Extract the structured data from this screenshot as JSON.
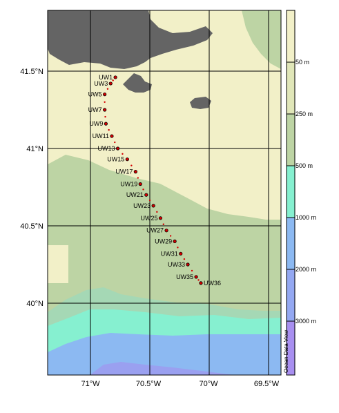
{
  "map": {
    "lon_labels": [
      "71°W",
      "70.5°W",
      "70°W",
      "69.5°W"
    ],
    "lat_labels": [
      "41.5°N",
      "41°N",
      "40.5°N",
      "40°N"
    ],
    "colors": {
      "shelf_0_50": "#f2f0c8",
      "band_50_250": "#bdd4a4",
      "band_250_500": "#a5d8b5",
      "band_500_1000": "#86f0d0",
      "band_1000_2000": "#8cb9f2",
      "band_2000_3000": "#9aa0f0",
      "band_3000_plus": "#a88ff0",
      "land": "#646464",
      "grid": "#000000",
      "station_line": "#d40000"
    }
  },
  "colorbar": {
    "labels": [
      "50 m",
      "250 m",
      "500 m",
      "1000 m",
      "2000 m",
      "3000 m"
    ],
    "watermark": "Ocean Data View"
  },
  "stations": [
    {
      "name": "UW1",
      "lon": -70.79,
      "lat": 41.46
    },
    {
      "name": "UW3",
      "lon": -70.83,
      "lat": 41.42
    },
    {
      "name": "UW5",
      "lon": -70.88,
      "lat": 41.35
    },
    {
      "name": "UW7",
      "lon": -70.88,
      "lat": 41.25
    },
    {
      "name": "UW9",
      "lon": -70.87,
      "lat": 41.16
    },
    {
      "name": "UW11",
      "lon": -70.82,
      "lat": 41.08
    },
    {
      "name": "UW13",
      "lon": -70.77,
      "lat": 41.0
    },
    {
      "name": "UW15",
      "lon": -70.69,
      "lat": 40.93
    },
    {
      "name": "UW17",
      "lon": -70.62,
      "lat": 40.85
    },
    {
      "name": "UW19",
      "lon": -70.58,
      "lat": 40.77
    },
    {
      "name": "UW21",
      "lon": -70.53,
      "lat": 40.7
    },
    {
      "name": "UW23",
      "lon": -70.47,
      "lat": 40.63
    },
    {
      "name": "UW25",
      "lon": -70.41,
      "lat": 40.55
    },
    {
      "name": "UW27",
      "lon": -70.36,
      "lat": 40.47
    },
    {
      "name": "UW29",
      "lon": -70.29,
      "lat": 40.4
    },
    {
      "name": "UW31",
      "lon": -70.24,
      "lat": 40.32
    },
    {
      "name": "UW33",
      "lon": -70.18,
      "lat": 40.25
    },
    {
      "name": "UW35",
      "lon": -70.11,
      "lat": 40.17
    },
    {
      "name": "UW36",
      "lon": -70.07,
      "lat": 40.13
    }
  ]
}
